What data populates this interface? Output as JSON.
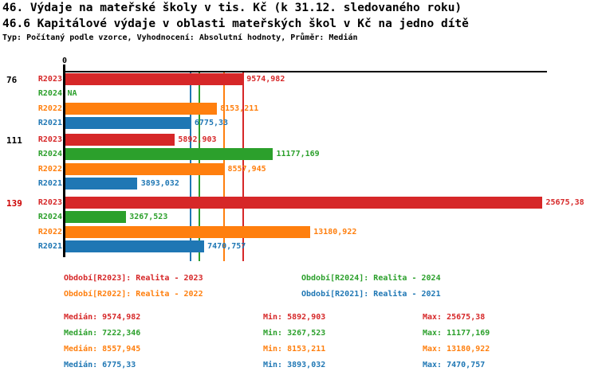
{
  "title1": "46. Výdaje na mateřské školy v tis. Kč (k 31.12. sledovaného roku)",
  "title2": "46.6 Kapitálové výdaje v oblasti mateřských škol v Kč na jedno dítě",
  "subtitle": "Typ: Počítaný podle vzorce, Vyhodnocení: Absolutní hodnoty, Průměr: Medián",
  "colors": {
    "R2023": "#d62728",
    "R2024": "#2ca02c",
    "R2022": "#ff7f0e",
    "R2021": "#1f77b4",
    "highlight_group_label": "#cc0000",
    "normal_group_label": "#000000",
    "axis": "#000000"
  },
  "chart_data": {
    "type": "bar",
    "orientation": "horizontal",
    "axis_zero_label": "0",
    "xlim": [
      0,
      25900
    ],
    "grid": false,
    "series_order": [
      "R2023",
      "R2024",
      "R2022",
      "R2021"
    ],
    "groups": [
      {
        "label": "76",
        "highlight": false,
        "bars": [
          {
            "series": "R2023",
            "value": 9574.982,
            "display": "9574,982"
          },
          {
            "series": "R2024",
            "value": null,
            "display": "NA"
          },
          {
            "series": "R2022",
            "value": 8153.211,
            "display": "8153,211"
          },
          {
            "series": "R2021",
            "value": 6775.33,
            "display": "6775,33"
          }
        ]
      },
      {
        "label": "111",
        "highlight": false,
        "bars": [
          {
            "series": "R2023",
            "value": 5892.903,
            "display": "5892,903"
          },
          {
            "series": "R2024",
            "value": 11177.169,
            "display": "11177,169"
          },
          {
            "series": "R2022",
            "value": 8557.945,
            "display": "8557,945"
          },
          {
            "series": "R2021",
            "value": 3893.032,
            "display": "3893,032"
          }
        ]
      },
      {
        "label": "139",
        "highlight": true,
        "bars": [
          {
            "series": "R2023",
            "value": 25675.38,
            "display": "25675,38"
          },
          {
            "series": "R2024",
            "value": 3267.523,
            "display": "3267,523"
          },
          {
            "series": "R2022",
            "value": 13180.922,
            "display": "13180,922"
          },
          {
            "series": "R2021",
            "value": 7470.757,
            "display": "7470,757"
          }
        ]
      }
    ],
    "median_lines": [
      {
        "series": "R2021",
        "value": 6775.33
      },
      {
        "series": "R2024",
        "value": 7222.346
      },
      {
        "series": "R2022",
        "value": 8557.945
      },
      {
        "series": "R2023",
        "value": 9574.982
      }
    ]
  },
  "legend": [
    {
      "series": "R2023",
      "label": "Období[R2023]: Realita - 2023"
    },
    {
      "series": "R2024",
      "label": "Období[R2024]: Realita - 2024"
    },
    {
      "series": "R2022",
      "label": "Období[R2022]: Realita - 2022"
    },
    {
      "series": "R2021",
      "label": "Období[R2021]: Realita - 2021"
    }
  ],
  "stats": [
    {
      "series": "R2023",
      "median": "Medián: 9574,982",
      "min": "Min: 5892,903",
      "max": "Max: 25675,38"
    },
    {
      "series": "R2024",
      "median": "Medián: 7222,346",
      "min": "Min: 3267,523",
      "max": "Max: 11177,169"
    },
    {
      "series": "R2022",
      "median": "Medián: 8557,945",
      "min": "Min: 8153,211",
      "max": "Max: 13180,922"
    },
    {
      "series": "R2021",
      "median": "Medián: 6775,33",
      "min": "Min: 3893,032",
      "max": "Max: 7470,757"
    }
  ]
}
